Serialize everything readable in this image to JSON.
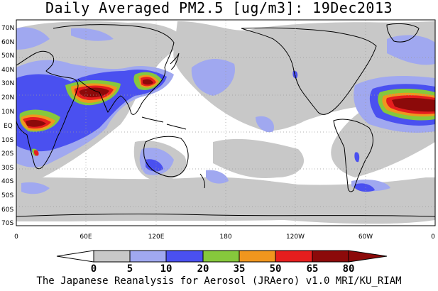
{
  "title": "Daily Averaged PM2.5 [ug/m3]: 19Dec2013",
  "credit": "The Japanese Reanalysis for Aerosol (JRAero) v1.0 MRI/KU_RIAM",
  "lat_labels": [
    "70N",
    "60N",
    "50N",
    "40N",
    "30N",
    "20N",
    "10N",
    "EQ",
    "10S",
    "20S",
    "30S",
    "40S",
    "50S",
    "60S",
    "70S"
  ],
  "lon_labels": [
    "0",
    "60E",
    "120E",
    "180",
    "120W",
    "60W",
    "0"
  ],
  "colorbar": {
    "ticks": [
      "0",
      "5",
      "10",
      "20",
      "35",
      "50",
      "65",
      "80"
    ],
    "colors": [
      "#ffffff",
      "#c8c8c8",
      "#a0a8f0",
      "#4a50f0",
      "#86c83c",
      "#f0961e",
      "#e61e1e",
      "#8c0a0a"
    ]
  }
}
